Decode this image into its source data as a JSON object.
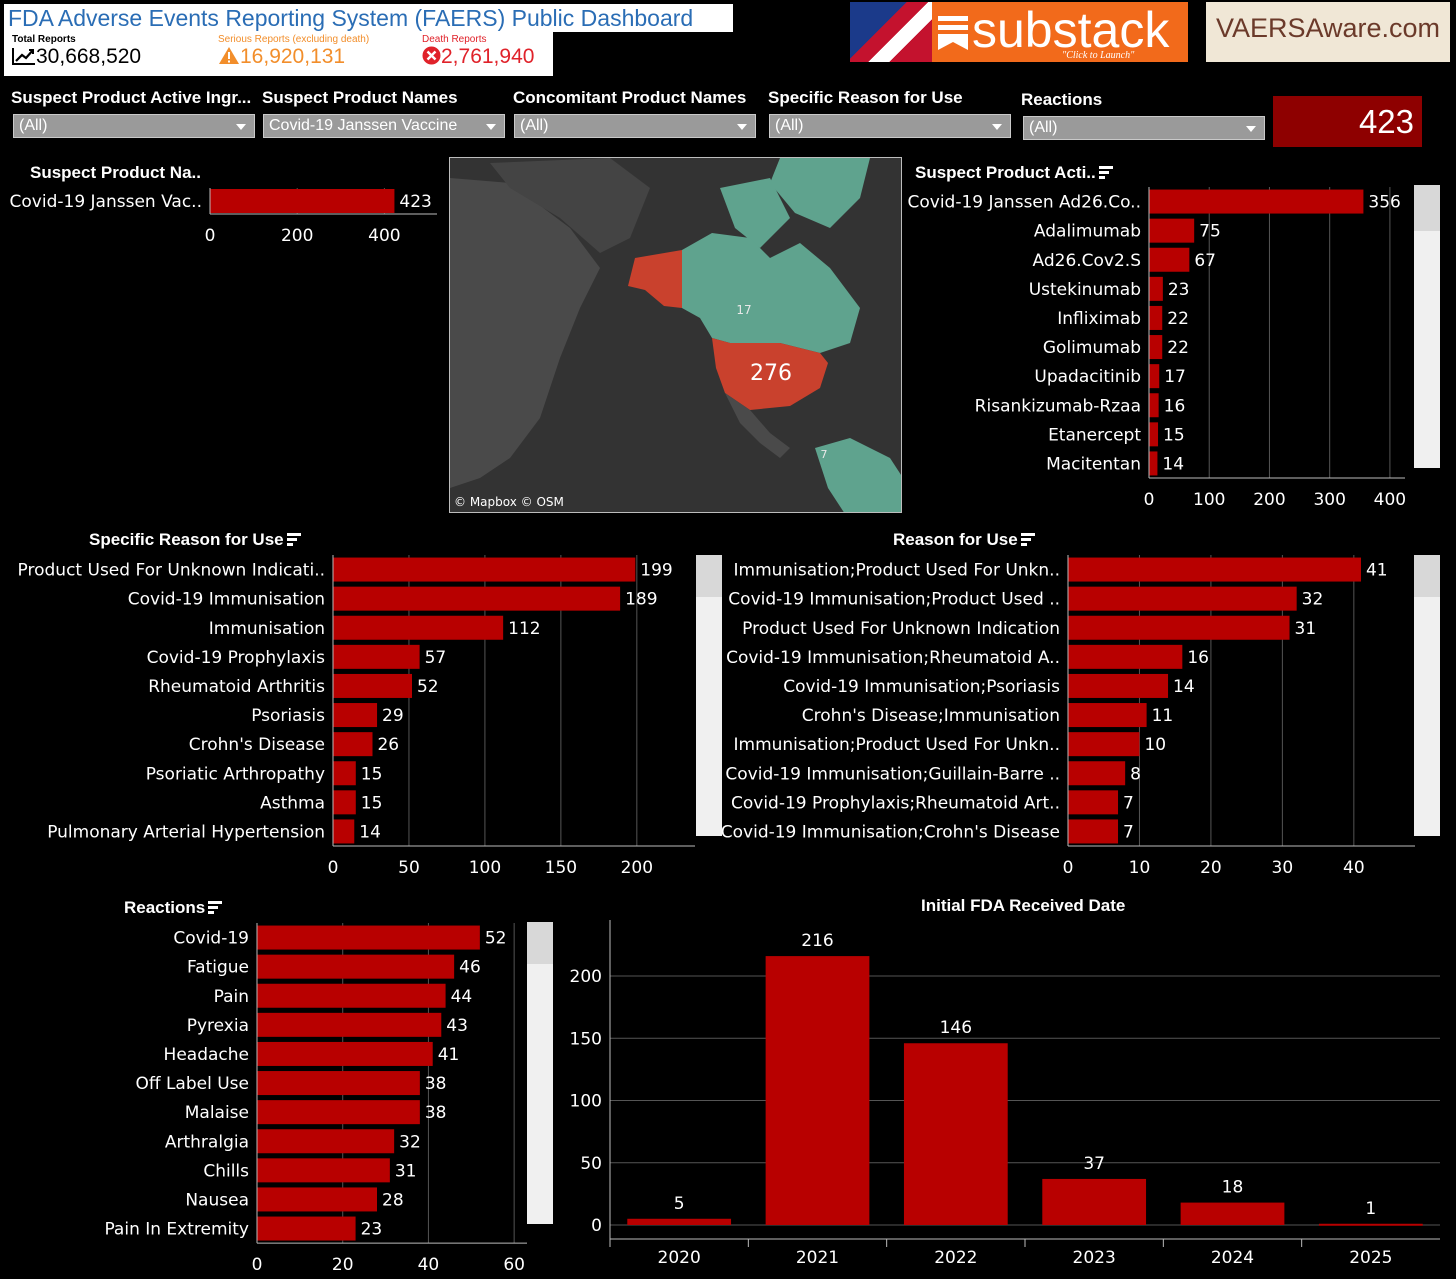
{
  "header": {
    "title": "FDA Adverse Events Reporting System (FAERS) Public Dashboard",
    "kpis": [
      {
        "label": "Total Reports",
        "value": "30,668,520",
        "color": "#000000",
        "icon": "trend-icon"
      },
      {
        "label": "Serious Reports (excluding death)",
        "value": "16,920,131",
        "color": "#f28e2b",
        "icon": "warning-icon"
      },
      {
        "label": "Death Reports",
        "value": "2,761,940",
        "color": "#e0222a",
        "icon": "error-icon"
      }
    ]
  },
  "banners": {
    "substack": {
      "text": "substack",
      "sub": "\"Click to Launch\"",
      "color": "#f26a1b"
    },
    "vaers": {
      "text": "VAERSAware.com"
    }
  },
  "filters": [
    {
      "label": "Suspect Product Active Ingr...",
      "value": "(All)"
    },
    {
      "label": "Suspect Product Names",
      "value": "Covid-19 Janssen Vaccine"
    },
    {
      "label": "Concomitant Product Names",
      "value": "(All)"
    },
    {
      "label": "Specific Reason for Use",
      "value": "(All)"
    },
    {
      "label": "Reactions",
      "value": "(All)"
    }
  ],
  "total_count": "423",
  "map": {
    "labels": [
      "17",
      "276",
      "7"
    ],
    "attribution": "© Mapbox  © OSM"
  },
  "colors": {
    "bar": "#b80000",
    "accent": "#8e0000",
    "grid": "#555555",
    "map_green": "#5fa38e",
    "map_red": "#c9412d",
    "map_land": "#4a4a4a",
    "map_water": "#333333"
  },
  "chart_data": [
    {
      "id": "suspect-product-names",
      "type": "bar",
      "title": "Suspect Product Na..",
      "categories": [
        "Covid-19 Janssen Vac.."
      ],
      "values": [
        423
      ],
      "xlim": [
        0,
        500
      ],
      "ticks": [
        0,
        200,
        400
      ]
    },
    {
      "id": "suspect-product-active",
      "type": "bar",
      "title": "Suspect Product Acti..",
      "categories": [
        "Covid-19 Janssen Ad26.Co..",
        "Adalimumab",
        "Ad26.Cov2.S",
        "Ustekinumab",
        "Infliximab",
        "Golimumab",
        "Upadacitinib",
        "Risankizumab-Rzaa",
        "Etanercept",
        "Macitentan"
      ],
      "values": [
        356,
        75,
        67,
        23,
        22,
        22,
        17,
        16,
        15,
        14
      ],
      "xlim": [
        0,
        440
      ],
      "ticks": [
        0,
        100,
        200,
        300,
        400
      ]
    },
    {
      "id": "specific-reason",
      "type": "bar",
      "title": "Specific Reason for Use",
      "categories": [
        "Product Used For Unknown Indicati..",
        "Covid-19 Immunisation",
        "Immunisation",
        "Covid-19 Prophylaxis",
        "Rheumatoid Arthritis",
        "Psoriasis",
        "Crohn's Disease",
        "Psoriatic Arthropathy",
        "Asthma",
        "Pulmonary Arterial Hypertension"
      ],
      "values": [
        199,
        189,
        112,
        57,
        52,
        29,
        26,
        15,
        15,
        14
      ],
      "xlim": [
        0,
        235
      ],
      "ticks": [
        0,
        50,
        100,
        150,
        200
      ]
    },
    {
      "id": "reason-for-use",
      "type": "bar",
      "title": "Reason for Use",
      "categories": [
        "Immunisation;Product Used For Unkn..",
        "Covid-19 Immunisation;Product Used ..",
        "Product Used For Unknown Indication",
        "Covid-19 Immunisation;Rheumatoid A..",
        "Covid-19 Immunisation;Psoriasis",
        "Crohn's Disease;Immunisation",
        "Immunisation;Product Used For Unkn..",
        "Covid-19 Immunisation;Guillain-Barre ..",
        "Covid-19 Prophylaxis;Rheumatoid Art..",
        "Covid-19 Immunisation;Crohn's Disease"
      ],
      "values": [
        41,
        32,
        31,
        16,
        14,
        11,
        10,
        8,
        7,
        7
      ],
      "xlim": [
        0,
        48
      ],
      "ticks": [
        0,
        10,
        20,
        30,
        40
      ]
    },
    {
      "id": "reactions",
      "type": "bar",
      "title": "Reactions",
      "categories": [
        "Covid-19",
        "Fatigue",
        "Pain",
        "Pyrexia",
        "Headache",
        "Off Label Use",
        "Malaise",
        "Arthralgia",
        "Chills",
        "Nausea",
        "Pain In Extremity"
      ],
      "values": [
        52,
        46,
        44,
        43,
        41,
        38,
        38,
        32,
        31,
        28,
        23
      ],
      "xlim": [
        0,
        63
      ],
      "ticks": [
        0,
        20,
        40,
        60
      ]
    },
    {
      "id": "fda-received-date",
      "type": "bar",
      "title": "Initial FDA Received Date",
      "categories": [
        "2020",
        "2021",
        "2022",
        "2023",
        "2024",
        "2025"
      ],
      "values": [
        5,
        216,
        146,
        37,
        18,
        1
      ],
      "ylim": [
        0,
        245
      ],
      "ticks": [
        0,
        50,
        100,
        150,
        200
      ]
    }
  ]
}
